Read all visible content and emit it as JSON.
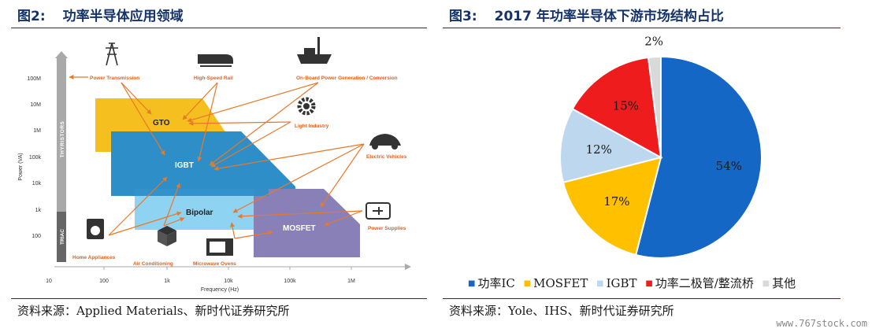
{
  "left": {
    "title_num": "图2:",
    "title_text": "功率半导体应用领域",
    "source": "资料来源：Applied Materials、新时代证券研究所",
    "diagram": {
      "y_axis_label": "Power (VA)",
      "x_axis_label": "Frequency (Hz)",
      "y_ticks": [
        "100M",
        "10M",
        "1M",
        "100k",
        "10k",
        "1k",
        "100"
      ],
      "x_ticks": [
        "10",
        "100",
        "1k",
        "10k",
        "100k",
        "1M"
      ],
      "bar_labels": [
        "THYRISTORS",
        "TRIAC"
      ],
      "regions": {
        "gto": "GTO",
        "igbt": "IGBT",
        "bipolar": "Bipolar",
        "mosfet": "MOSFET"
      },
      "applications": {
        "power_transmission": "Power Transmission",
        "high_speed_rail": "High-Speed Rail",
        "onboard_power": "On-Board Power Generation / Conversion",
        "light_industry": "Light Industry",
        "electric_vehicles": "Electric Vehicles",
        "power_supplies": "Power Supplies",
        "home_appliances": "Home Appliances",
        "air_conditioning": "Air Conditioning",
        "microwave_ovens": "Microwave Ovens"
      },
      "icons": [
        "transmission-tower-icon",
        "train-icon",
        "ship-icon",
        "gear-icon",
        "electric-car-icon",
        "battery-plug-icon",
        "washing-machine-icon",
        "air-conditioner-icon",
        "microwave-icon"
      ]
    }
  },
  "right": {
    "title_num": "图3:",
    "title_text": "2017 年功率半导体下游市场结构占比",
    "source": "资料来源：Yole、IHS、新时代证券研究所",
    "chart_data": {
      "type": "pie",
      "title": "2017 年功率半导体下游市场结构占比",
      "labels": [
        "功率IC",
        "MOSFET",
        "IGBT",
        "功率二极管/整流桥",
        "其他"
      ],
      "values": [
        54,
        17,
        12,
        15,
        2
      ],
      "value_labels": [
        "54%",
        "17%",
        "12%",
        "15%",
        "2%"
      ],
      "colors": [
        "#1467c4",
        "#ffc000",
        "#bdd7ee",
        "#ee1c1c",
        "#d9d9d9"
      ],
      "legend_position": "bottom"
    }
  },
  "watermark": "www.767stock.com"
}
